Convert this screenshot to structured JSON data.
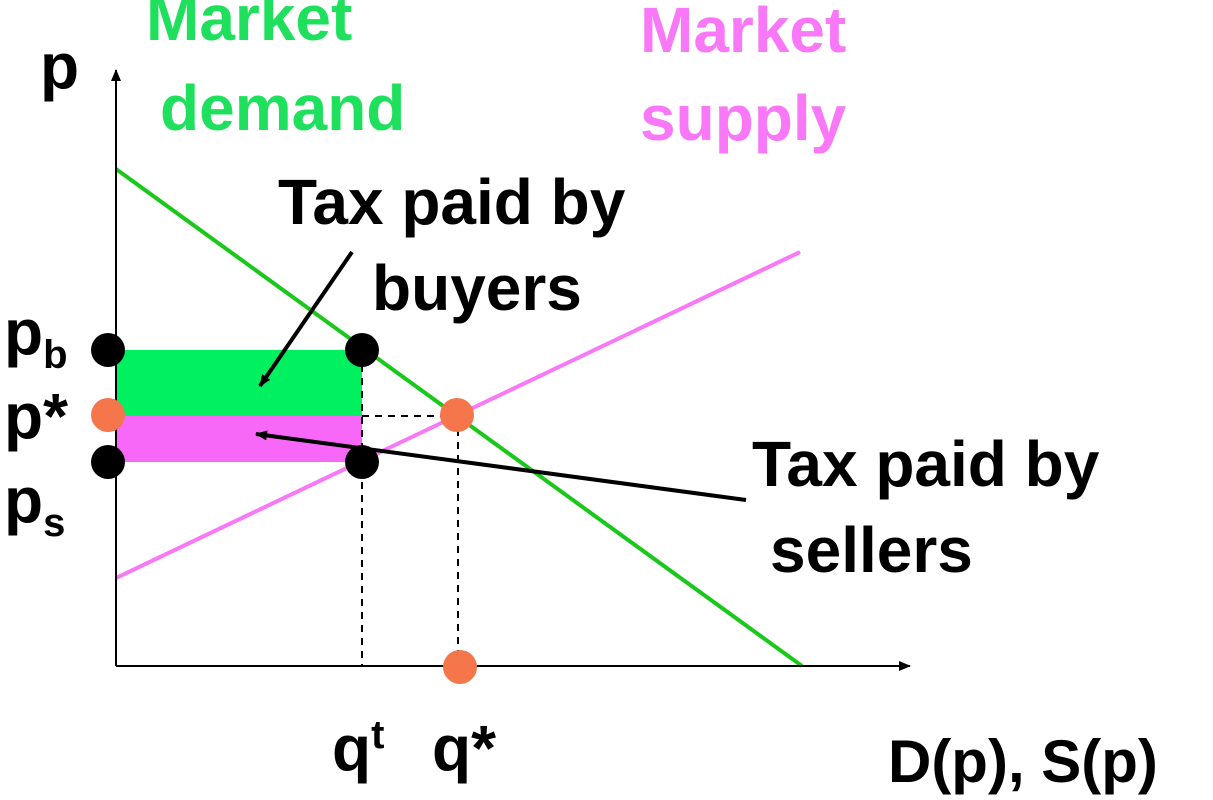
{
  "labels": {
    "price_axis": "p",
    "quantity_axis": "D(p), S(p)",
    "demand_line1": "Market",
    "demand_line2": "demand",
    "supply_line1": "Market",
    "supply_line2": "supply",
    "tax_buyers_line1": "Tax paid by",
    "tax_buyers_line2": "buyers",
    "tax_sellers_line1": "Tax paid by",
    "tax_sellers_line2": "sellers",
    "pb_base": "p",
    "pb_sub": "b",
    "pstar": "p*",
    "ps_base": "p",
    "ps_sub": "s",
    "qt_base": "q",
    "qt_sup": "t",
    "qstar": "q*"
  },
  "colors": {
    "demand": "#19c819",
    "demand_text": "#1ee05c",
    "supply": "#f878f8",
    "supply_text": "#f878f8",
    "buyer_tax_area": "#00f060",
    "seller_tax_area": "#f868f8",
    "equilibrium_dot": "#f4764a",
    "tax_point_dot": "#000000",
    "axes": "#000000"
  },
  "icons": {
    "equilibrium": "orange-dot",
    "tax_points": "black-dot",
    "arrows": "black-arrow"
  }
}
